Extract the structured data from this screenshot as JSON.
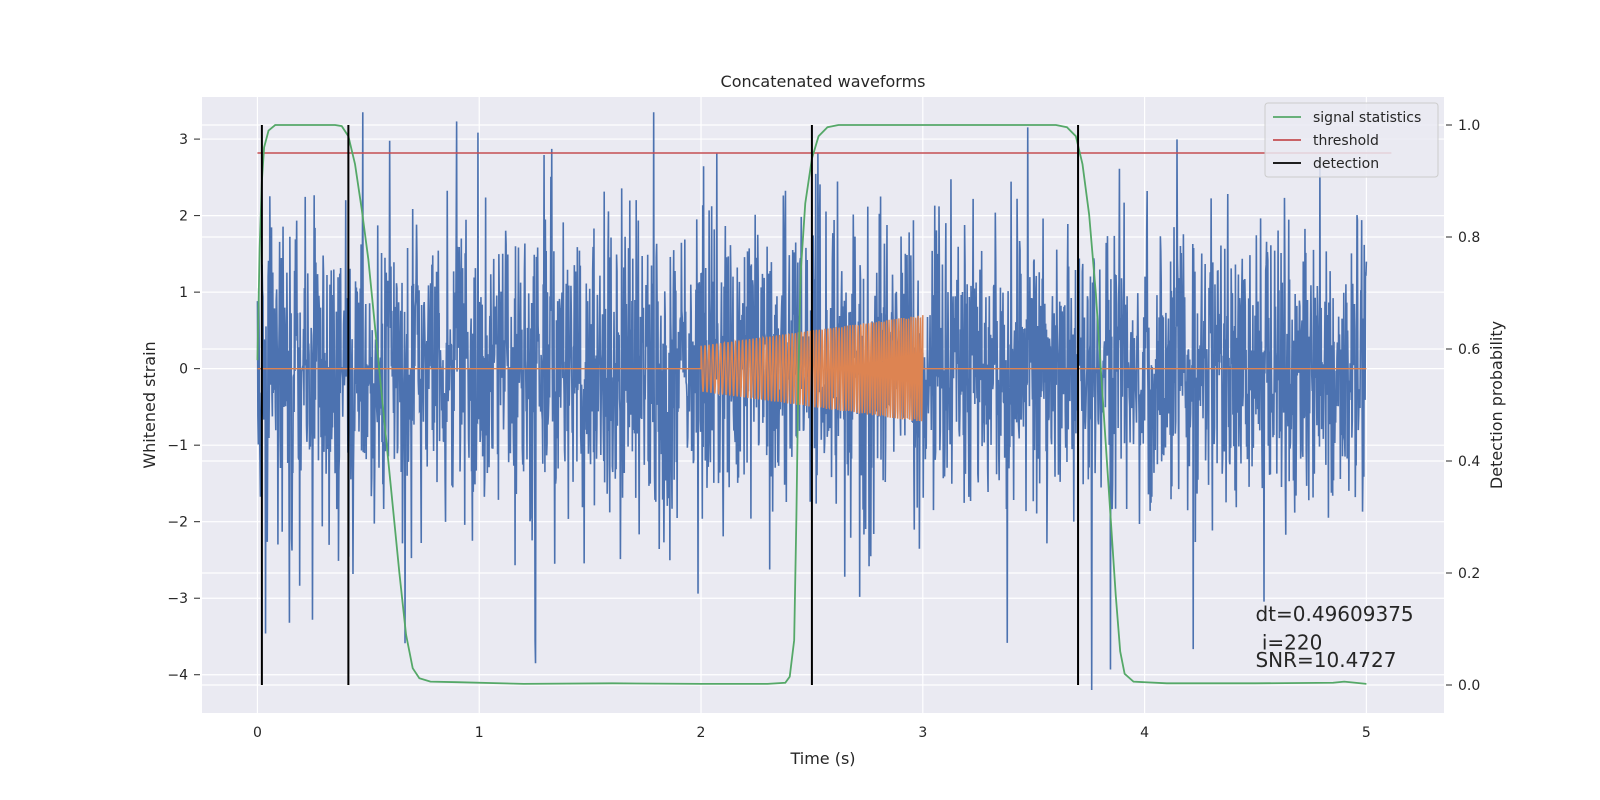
{
  "chart_data": {
    "type": "line",
    "title": "Concatenated waveforms",
    "xlabel": "Time (s)",
    "ylabel": "Whitened strain",
    "y2label": "Detection probability",
    "xlim": [
      -0.25,
      5.35
    ],
    "ylim": [
      -4.5,
      3.55
    ],
    "y2lim": [
      -0.05,
      1.05
    ],
    "grid": true,
    "legend_position": "top-right",
    "x_ticks": [
      0,
      1,
      2,
      3,
      4,
      5
    ],
    "x_tick_labels": [
      "0",
      "1",
      "2",
      "3",
      "4",
      "5"
    ],
    "y_ticks": [
      -4,
      -3,
      -2,
      -1,
      0,
      1,
      2,
      3
    ],
    "y_tick_labels": [
      "−4",
      "−3",
      "−2",
      "−1",
      "0",
      "1",
      "2",
      "3"
    ],
    "y2_ticks": [
      0,
      0.2,
      0.4,
      0.6,
      0.8,
      1.0
    ],
    "y2_tick_labels": [
      "0.0",
      "0.2",
      "0.4",
      "0.6",
      "0.8",
      "1.0"
    ],
    "series": [
      {
        "role": "whitened-strain",
        "color": "#4c72b0",
        "x_range": [
          0,
          5
        ],
        "typical_amplitude": 1.0,
        "peak_range": [
          -4.2,
          3.35
        ]
      },
      {
        "role": "injected-template",
        "color": "#dd8452",
        "x_range": [
          0,
          5
        ],
        "nonzero_range": [
          2.0,
          3.0
        ],
        "amplitude_start": 0.3,
        "amplitude_end": 0.7
      },
      {
        "name": "signal statistics",
        "color": "#55a868",
        "axis": "right",
        "points": [
          [
            0.0,
            0.58
          ],
          [
            0.01,
            0.78
          ],
          [
            0.02,
            0.9
          ],
          [
            0.03,
            0.96
          ],
          [
            0.05,
            0.99
          ],
          [
            0.08,
            1.0
          ],
          [
            0.35,
            1.0
          ],
          [
            0.38,
            0.998
          ],
          [
            0.41,
            0.98
          ],
          [
            0.44,
            0.93
          ],
          [
            0.47,
            0.85
          ],
          [
            0.5,
            0.76
          ],
          [
            0.53,
            0.64
          ],
          [
            0.56,
            0.52
          ],
          [
            0.6,
            0.36
          ],
          [
            0.64,
            0.2
          ],
          [
            0.67,
            0.09
          ],
          [
            0.7,
            0.03
          ],
          [
            0.73,
            0.012
          ],
          [
            0.78,
            0.006
          ],
          [
            0.9,
            0.005
          ],
          [
            1.2,
            0.002
          ],
          [
            1.6,
            0.003
          ],
          [
            2.0,
            0.002
          ],
          [
            2.3,
            0.002
          ],
          [
            2.38,
            0.004
          ],
          [
            2.4,
            0.015
          ],
          [
            2.42,
            0.08
          ],
          [
            2.43,
            0.3
          ],
          [
            2.44,
            0.58
          ],
          [
            2.45,
            0.74
          ],
          [
            2.47,
            0.86
          ],
          [
            2.5,
            0.94
          ],
          [
            2.53,
            0.98
          ],
          [
            2.57,
            0.996
          ],
          [
            2.62,
            1.0
          ],
          [
            3.6,
            1.0
          ],
          [
            3.65,
            0.996
          ],
          [
            3.69,
            0.98
          ],
          [
            3.72,
            0.93
          ],
          [
            3.75,
            0.84
          ],
          [
            3.78,
            0.7
          ],
          [
            3.81,
            0.52
          ],
          [
            3.84,
            0.34
          ],
          [
            3.87,
            0.16
          ],
          [
            3.89,
            0.06
          ],
          [
            3.91,
            0.02
          ],
          [
            3.95,
            0.006
          ],
          [
            4.1,
            0.003
          ],
          [
            4.5,
            0.003
          ],
          [
            4.85,
            0.004
          ],
          [
            4.9,
            0.006
          ],
          [
            4.95,
            0.004
          ],
          [
            5.0,
            0.002
          ]
        ]
      },
      {
        "name": "threshold",
        "color": "#c44e52",
        "axis": "right",
        "value": 0.95,
        "x_range": [
          0,
          5
        ]
      },
      {
        "name": "detection",
        "color": "#000000",
        "axis": "right",
        "x_positions": [
          0.02,
          0.41,
          2.5,
          3.7
        ],
        "y_range": [
          0,
          1
        ]
      }
    ],
    "annotations": [
      {
        "text": "dt=0.49609375",
        "x": 4.5,
        "y": -3.3
      },
      {
        "text": " i=220",
        "x": 4.5,
        "y": -3.67
      },
      {
        "text": "SNR=10.4727",
        "x": 4.5,
        "y": -3.9
      }
    ]
  }
}
